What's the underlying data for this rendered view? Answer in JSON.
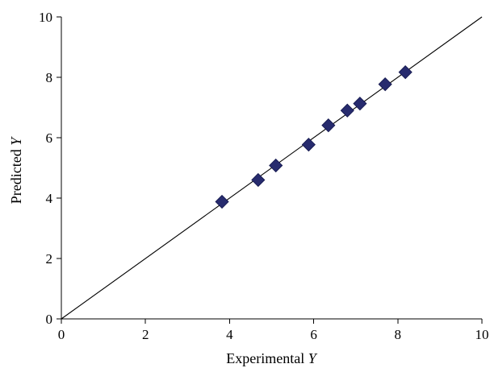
{
  "chart_data": {
    "type": "scatter",
    "xlabel": "Experimental",
    "xlabel_var": "Y",
    "ylabel": "Predicted",
    "ylabel_var": "Y",
    "xlim": [
      0,
      10
    ],
    "ylim": [
      0,
      10
    ],
    "xticks": [
      "0",
      "2",
      "4",
      "6",
      "8",
      "10"
    ],
    "yticks": [
      "0",
      "2",
      "4",
      "6",
      "8",
      "10"
    ],
    "grid": false,
    "marker_color": "#272b6e",
    "reference_line": {
      "from": [
        0,
        0
      ],
      "to": [
        10,
        10
      ]
    },
    "points": [
      {
        "x": 3.82,
        "y": 3.88
      },
      {
        "x": 4.68,
        "y": 4.6
      },
      {
        "x": 5.1,
        "y": 5.08
      },
      {
        "x": 5.88,
        "y": 5.77
      },
      {
        "x": 6.35,
        "y": 6.41
      },
      {
        "x": 6.8,
        "y": 6.9
      },
      {
        "x": 7.1,
        "y": 7.13
      },
      {
        "x": 7.7,
        "y": 7.77
      },
      {
        "x": 8.18,
        "y": 8.17
      }
    ]
  }
}
